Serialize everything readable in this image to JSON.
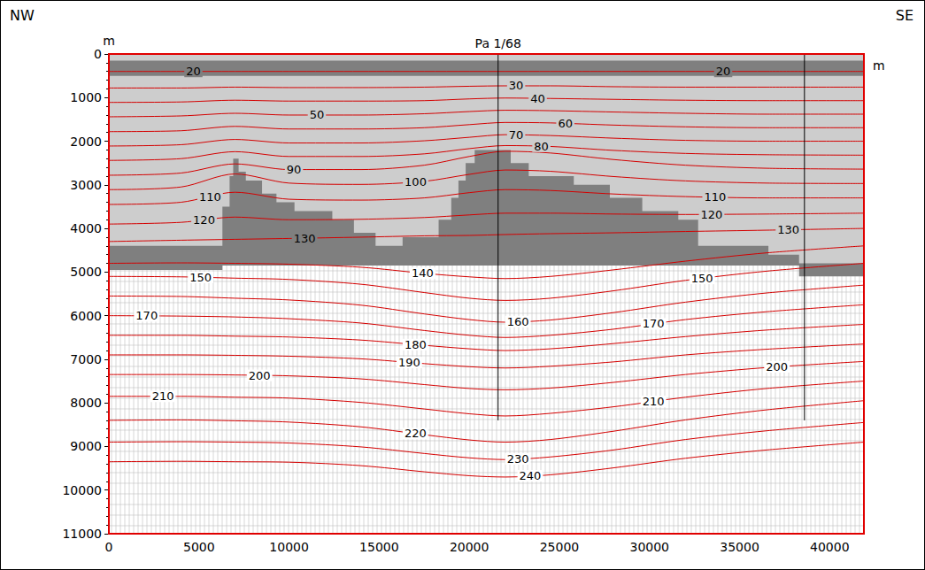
{
  "chart_data": {
    "type": "section",
    "direction_labels": [
      "NW",
      "SE"
    ],
    "x_label": "m",
    "y_label": "m",
    "xlim": [
      0,
      41900
    ],
    "xticks": [
      0,
      5000,
      10000,
      15000,
      20000,
      25000,
      30000,
      35000,
      40000
    ],
    "ylim": [
      11000,
      0
    ],
    "yticks": [
      0,
      1000,
      2000,
      3000,
      4000,
      5000,
      6000,
      7000,
      8000,
      9000,
      10000,
      11000
    ],
    "regions": [
      {
        "color": "#cdcdcd",
        "polygon": [
          [
            0,
            0
          ],
          [
            41900,
            0
          ],
          [
            41900,
            4850
          ],
          [
            0,
            4850
          ]
        ]
      },
      {
        "color": "#ffffff",
        "line_style": "mesh",
        "polygon": [
          [
            0,
            4850
          ],
          [
            41900,
            4850
          ],
          [
            41900,
            11000
          ],
          [
            0,
            11000
          ]
        ]
      },
      {
        "color": "#7f7f7f",
        "polygon": [
          [
            0,
            150
          ],
          [
            41900,
            150
          ],
          [
            41900,
            500
          ],
          [
            0,
            500
          ]
        ]
      },
      {
        "color": "#7f7f7f",
        "polygon": [
          [
            0,
            4400
          ],
          [
            6300,
            4400
          ],
          [
            6300,
            3500
          ],
          [
            6700,
            3500
          ],
          [
            6700,
            2800
          ],
          [
            6900,
            2800
          ],
          [
            6900,
            2400
          ],
          [
            7200,
            2400
          ],
          [
            7200,
            2700
          ],
          [
            7600,
            2700
          ],
          [
            7600,
            2900
          ],
          [
            8500,
            2900
          ],
          [
            8500,
            3200
          ],
          [
            9300,
            3200
          ],
          [
            9300,
            3400
          ],
          [
            10300,
            3400
          ],
          [
            10300,
            3600
          ],
          [
            12400,
            3600
          ],
          [
            12400,
            3800
          ],
          [
            13600,
            3800
          ],
          [
            13600,
            4100
          ],
          [
            14800,
            4100
          ],
          [
            14800,
            4400
          ],
          [
            16300,
            4400
          ],
          [
            16300,
            4200
          ],
          [
            18300,
            4200
          ],
          [
            18300,
            3800
          ],
          [
            19000,
            3800
          ],
          [
            19000,
            3300
          ],
          [
            19400,
            3300
          ],
          [
            19400,
            2900
          ],
          [
            19800,
            2900
          ],
          [
            19800,
            2500
          ],
          [
            20300,
            2500
          ],
          [
            20300,
            2200
          ],
          [
            22300,
            2200
          ],
          [
            22300,
            2500
          ],
          [
            23300,
            2500
          ],
          [
            23300,
            2800
          ],
          [
            25800,
            2800
          ],
          [
            25800,
            3000
          ],
          [
            27800,
            3000
          ],
          [
            27800,
            3300
          ],
          [
            29600,
            3300
          ],
          [
            29600,
            3600
          ],
          [
            31600,
            3600
          ],
          [
            31600,
            3800
          ],
          [
            32700,
            3800
          ],
          [
            32700,
            4400
          ],
          [
            36600,
            4400
          ],
          [
            36600,
            4600
          ],
          [
            38300,
            4600
          ],
          [
            38300,
            4800
          ],
          [
            41900,
            4800
          ],
          [
            41900,
            5100
          ],
          [
            38300,
            5100
          ],
          [
            38300,
            4850
          ],
          [
            6300,
            4850
          ],
          [
            6300,
            4950
          ],
          [
            0,
            4950
          ]
        ]
      }
    ],
    "x": [
      0,
      4000,
      7000,
      10000,
      14000,
      17500,
      20000,
      22000,
      24500,
      28000,
      32000,
      36500,
      41900
    ],
    "series": [
      {
        "name": "20",
        "color": "#d40000",
        "values": [
          400,
          400,
          400,
          400,
          400,
          400,
          400,
          400,
          400,
          400,
          400,
          400,
          400
        ],
        "label_x": [
          4690,
          34090
        ]
      },
      {
        "name": "30",
        "color": "#d40000",
        "values": [
          780,
          780,
          760,
          770,
          770,
          760,
          740,
          730,
          730,
          750,
          760,
          760,
          760
        ],
        "label_x": [
          22600
        ]
      },
      {
        "name": "40",
        "color": "#d40000",
        "values": [
          1110,
          1100,
          1060,
          1080,
          1080,
          1070,
          1030,
          1010,
          1020,
          1040,
          1060,
          1070,
          1070
        ],
        "label_x": [
          23800
        ]
      },
      {
        "name": "50",
        "color": "#d40000",
        "values": [
          1440,
          1420,
          1360,
          1400,
          1400,
          1370,
          1320,
          1290,
          1300,
          1330,
          1360,
          1380,
          1380
        ],
        "label_x": [
          11540
        ]
      },
      {
        "name": "60",
        "color": "#d40000",
        "values": [
          1780,
          1760,
          1660,
          1720,
          1720,
          1690,
          1620,
          1570,
          1580,
          1630,
          1670,
          1690,
          1690
        ],
        "label_x": [
          25330
        ]
      },
      {
        "name": "70",
        "color": "#d40000",
        "values": [
          2110,
          2080,
          1960,
          2040,
          2040,
          1990,
          1910,
          1850,
          1870,
          1930,
          1980,
          2000,
          2000
        ],
        "label_x": [
          22600
        ]
      },
      {
        "name": "80",
        "color": "#d40000",
        "values": [
          2440,
          2400,
          2240,
          2350,
          2350,
          2290,
          2170,
          2100,
          2120,
          2210,
          2280,
          2310,
          2320
        ],
        "label_x": [
          24000
        ]
      },
      {
        "name": "90",
        "color": "#d40000",
        "values": [
          2780,
          2730,
          2520,
          2650,
          2650,
          2550,
          2350,
          2230,
          2270,
          2420,
          2550,
          2620,
          2640
        ],
        "label_x": [
          10270
        ]
      },
      {
        "name": "100",
        "color": "#d40000",
        "values": [
          3110,
          3050,
          2750,
          2960,
          2990,
          2920,
          2760,
          2660,
          2690,
          2810,
          2910,
          2960,
          2970
        ],
        "label_x": [
          17020
        ]
      },
      {
        "name": "110",
        "color": "#d40000",
        "values": [
          3450,
          3400,
          3170,
          3330,
          3350,
          3300,
          3180,
          3110,
          3130,
          3210,
          3270,
          3300,
          3300
        ],
        "label_x": [
          5620,
          33640
        ]
      },
      {
        "name": "120",
        "color": "#d40000",
        "values": [
          3900,
          3860,
          3740,
          3800,
          3790,
          3750,
          3690,
          3650,
          3650,
          3670,
          3680,
          3670,
          3650
        ],
        "label_x": [
          5280,
          33450
        ]
      },
      {
        "name": "130",
        "color": "#d40000",
        "values": [
          4300,
          4270,
          4250,
          4230,
          4200,
          4170,
          4160,
          4140,
          4120,
          4100,
          4070,
          4040,
          4000
        ],
        "label_x": [
          10860,
          37710
        ]
      },
      {
        "name": "140",
        "color": "#d40000",
        "values": [
          4800,
          4790,
          4800,
          4820,
          4890,
          5030,
          5110,
          5150,
          5100,
          4950,
          4750,
          4560,
          4400
        ],
        "label_x": [
          17410
        ]
      },
      {
        "name": "150",
        "color": "#d40000",
        "values": [
          5100,
          5110,
          5140,
          5170,
          5280,
          5470,
          5600,
          5650,
          5600,
          5430,
          5190,
          4980,
          4800
        ],
        "label_x": [
          5090,
          32920
        ]
      },
      {
        "name": "160",
        "color": "#d40000",
        "values": [
          5550,
          5560,
          5600,
          5640,
          5760,
          5960,
          6090,
          6150,
          6100,
          5930,
          5690,
          5480,
          5300
        ],
        "label_x": [
          22700
        ]
      },
      {
        "name": "170",
        "color": "#d40000",
        "values": [
          6000,
          6010,
          6030,
          6070,
          6170,
          6340,
          6450,
          6500,
          6450,
          6310,
          6090,
          5910,
          5750
        ],
        "label_x": [
          2100,
          30220
        ]
      },
      {
        "name": "180",
        "color": "#d40000",
        "values": [
          6450,
          6450,
          6470,
          6490,
          6560,
          6680,
          6760,
          6800,
          6760,
          6640,
          6480,
          6330,
          6200
        ],
        "label_x": [
          17010
        ]
      },
      {
        "name": "190",
        "color": "#d40000",
        "values": [
          6900,
          6900,
          6910,
          6930,
          6990,
          7100,
          7170,
          7200,
          7160,
          7060,
          6900,
          6770,
          6650
        ],
        "label_x": [
          16670
        ]
      },
      {
        "name": "200",
        "color": "#d40000",
        "values": [
          7350,
          7350,
          7360,
          7380,
          7450,
          7580,
          7670,
          7700,
          7660,
          7530,
          7350,
          7190,
          7050
        ],
        "label_x": [
          8360,
          37070
        ]
      },
      {
        "name": "210",
        "color": "#d40000",
        "values": [
          7850,
          7850,
          7870,
          7890,
          7990,
          8140,
          8250,
          8300,
          8240,
          8090,
          7870,
          7670,
          7500
        ],
        "label_x": [
          3000,
          30220
        ]
      },
      {
        "name": "220",
        "color": "#d40000",
        "values": [
          8400,
          8390,
          8410,
          8440,
          8550,
          8730,
          8850,
          8900,
          8840,
          8650,
          8390,
          8160,
          7950
        ],
        "label_x": [
          17010
        ]
      },
      {
        "name": "230",
        "color": "#d40000",
        "values": [
          8900,
          8890,
          8900,
          8920,
          9010,
          9160,
          9260,
          9300,
          9240,
          9080,
          8840,
          8640,
          8450
        ],
        "label_x": [
          22700
        ]
      },
      {
        "name": "240",
        "color": "#d40000",
        "values": [
          9350,
          9340,
          9350,
          9360,
          9440,
          9580,
          9670,
          9700,
          9650,
          9490,
          9270,
          9080,
          8900
        ],
        "label_x": [
          23380
        ]
      }
    ],
    "wells": [
      {
        "name": "Pa 1/68",
        "x": 21600,
        "depth": 8400
      },
      {
        "x": 38600,
        "depth": 8400
      }
    ]
  }
}
